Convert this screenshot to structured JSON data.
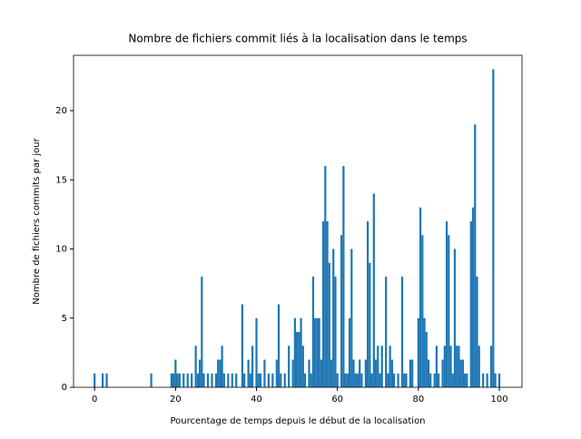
{
  "chart_data": {
    "type": "bar",
    "title": "Nombre de fichiers commit liés à la localisation dans le temps",
    "xlabel": "Pourcentage de temps depuis le début de la localisation",
    "ylabel": "Nombre de fichiers commits par jour",
    "color": "#1f77b4",
    "xlim": [
      -5.2,
      105.6
    ],
    "ylim": [
      0,
      24.0
    ],
    "xticks": [
      0,
      20,
      40,
      60,
      80,
      100
    ],
    "yticks": [
      0,
      5,
      10,
      15,
      20
    ],
    "x": [
      0,
      2,
      3,
      14,
      19,
      19.5,
      20,
      20.5,
      21,
      22,
      23,
      24,
      25,
      25.5,
      26,
      26.5,
      27,
      28,
      29,
      30,
      30.5,
      31,
      31.5,
      32,
      33,
      34,
      35,
      36.5,
      37,
      38,
      38.5,
      39,
      40,
      40.5,
      41,
      42,
      43,
      44,
      45,
      45.5,
      46,
      47,
      48,
      49,
      49.5,
      50,
      50.5,
      51,
      51.5,
      52,
      53,
      53.5,
      54,
      54.5,
      55,
      55.5,
      56,
      56.5,
      57,
      57.5,
      58,
      58.5,
      59,
      59.5,
      60,
      61,
      61.5,
      62,
      62.5,
      63,
      63.5,
      64,
      64.5,
      65,
      65.5,
      66,
      67,
      67.5,
      68,
      68.5,
      69,
      69.5,
      70,
      70.5,
      71,
      72,
      72.5,
      73,
      73.5,
      74,
      75,
      76,
      76.5,
      77,
      78,
      78.5,
      80,
      80.5,
      81,
      81.5,
      82,
      82.5,
      83,
      84,
      84.5,
      85,
      86,
      86.5,
      87,
      87.5,
      88,
      88.5,
      89,
      89.5,
      90,
      90.5,
      91,
      91.5,
      92,
      93,
      93.5,
      94,
      94.5,
      95,
      96,
      97,
      98,
      98.5,
      99,
      100
    ],
    "values": [
      1,
      1,
      1,
      1,
      1,
      1,
      2,
      1,
      1,
      1,
      1,
      1,
      3,
      1,
      2,
      8,
      1,
      1,
      1,
      1,
      2,
      2,
      3,
      1,
      1,
      1,
      1,
      6,
      1,
      2,
      1,
      3,
      5,
      1,
      1,
      2,
      1,
      1,
      2,
      6,
      1,
      1,
      3,
      2,
      5,
      4,
      4,
      5,
      3,
      1,
      2,
      1,
      8,
      5,
      5,
      5,
      2,
      12,
      16,
      12,
      9,
      2,
      10,
      8,
      1,
      11,
      16,
      1,
      1,
      5,
      10,
      2,
      1,
      1,
      2,
      1,
      2,
      12,
      9,
      1,
      14,
      2,
      3,
      1,
      3,
      8,
      1,
      3,
      2,
      1,
      1,
      8,
      1,
      1,
      2,
      2,
      5,
      13,
      11,
      5,
      4,
      2,
      1,
      1,
      3,
      1,
      2,
      3,
      12,
      11,
      3,
      1,
      10,
      3,
      3,
      2,
      2,
      1,
      1,
      12,
      13,
      19,
      8,
      3,
      1,
      1,
      3,
      23,
      1,
      1
    ]
  }
}
